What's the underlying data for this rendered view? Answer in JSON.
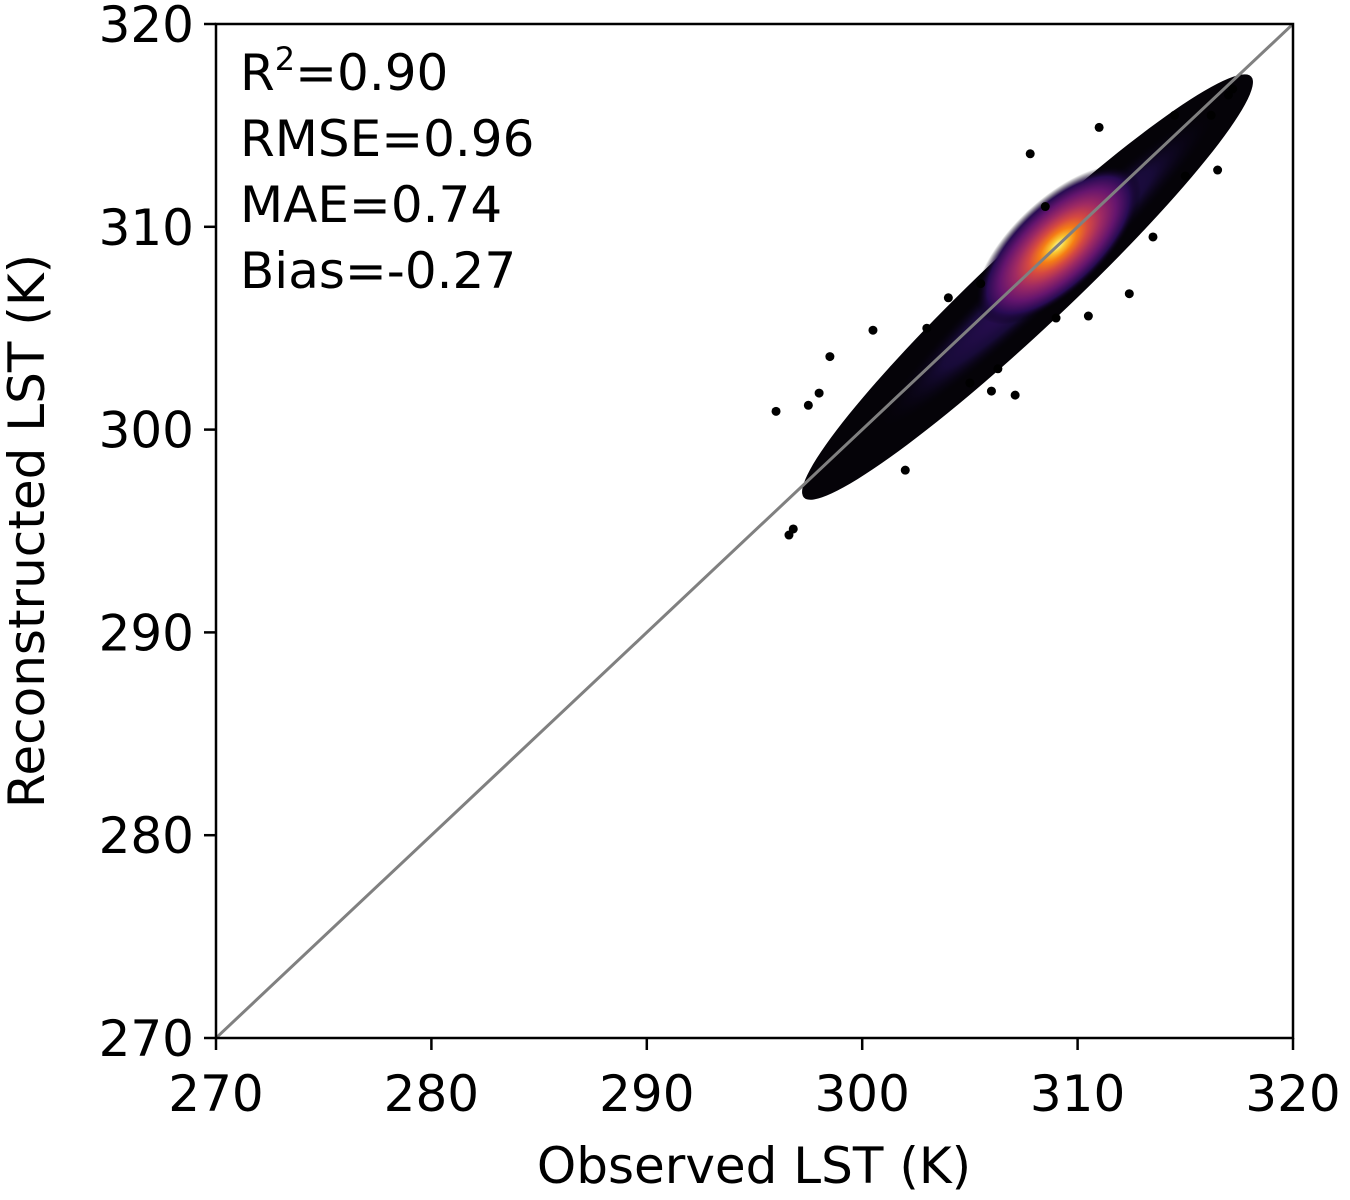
{
  "chart_data": {
    "type": "scatter",
    "subtype": "density-scatter",
    "xlabel": "Observed LST (K)",
    "ylabel": "Reconstructed LST (K)",
    "xlim": [
      270,
      320
    ],
    "ylim": [
      270,
      320
    ],
    "xticks": [
      "270",
      "280",
      "290",
      "300",
      "310",
      "320"
    ],
    "yticks": [
      "270",
      "280",
      "290",
      "300",
      "310",
      "320"
    ],
    "grid": false,
    "colormap": "inferno",
    "reference_line": {
      "type": "1:1",
      "from": [
        270,
        270
      ],
      "to": [
        320,
        320
      ],
      "color": "#808080"
    },
    "annotations": {
      "r2_prefix": "R",
      "r2_sup": "2",
      "r2_value": "=0.90",
      "rmse": "RMSE=0.96",
      "mae": "MAE=0.74",
      "bias": "Bias=-0.27"
    },
    "density_core": [
      {
        "x": 303.0,
        "y": 302.0,
        "level": 0.05
      },
      {
        "x": 306.0,
        "y": 305.3,
        "level": 0.2
      },
      {
        "x": 308.0,
        "y": 307.8,
        "level": 0.6
      },
      {
        "x": 309.1,
        "y": 309.1,
        "level": 1.0
      }
    ],
    "outliers": [
      {
        "x": 296.0,
        "y": 300.9
      },
      {
        "x": 296.6,
        "y": 294.8
      },
      {
        "x": 296.8,
        "y": 295.1
      },
      {
        "x": 297.5,
        "y": 301.2
      },
      {
        "x": 298.5,
        "y": 303.6
      },
      {
        "x": 302.0,
        "y": 298.0
      },
      {
        "x": 303.0,
        "y": 305.0
      },
      {
        "x": 304.0,
        "y": 306.5
      },
      {
        "x": 305.0,
        "y": 302.3
      },
      {
        "x": 306.0,
        "y": 301.9
      },
      {
        "x": 306.3,
        "y": 303.0
      },
      {
        "x": 307.1,
        "y": 301.7
      },
      {
        "x": 307.8,
        "y": 313.6
      },
      {
        "x": 309.0,
        "y": 305.5
      },
      {
        "x": 310.5,
        "y": 305.6
      },
      {
        "x": 312.4,
        "y": 306.7
      },
      {
        "x": 313.5,
        "y": 309.5
      },
      {
        "x": 315.0,
        "y": 312.5
      },
      {
        "x": 316.5,
        "y": 312.8
      },
      {
        "x": 317.0,
        "y": 316.5
      },
      {
        "x": 317.2,
        "y": 316.8
      },
      {
        "x": 316.2,
        "y": 315.5
      },
      {
        "x": 314.5,
        "y": 315.5
      },
      {
        "x": 311.0,
        "y": 314.9
      },
      {
        "x": 308.5,
        "y": 311.0
      },
      {
        "x": 305.5,
        "y": 307.2
      },
      {
        "x": 300.5,
        "y": 304.9
      },
      {
        "x": 298.0,
        "y": 301.8
      }
    ]
  }
}
